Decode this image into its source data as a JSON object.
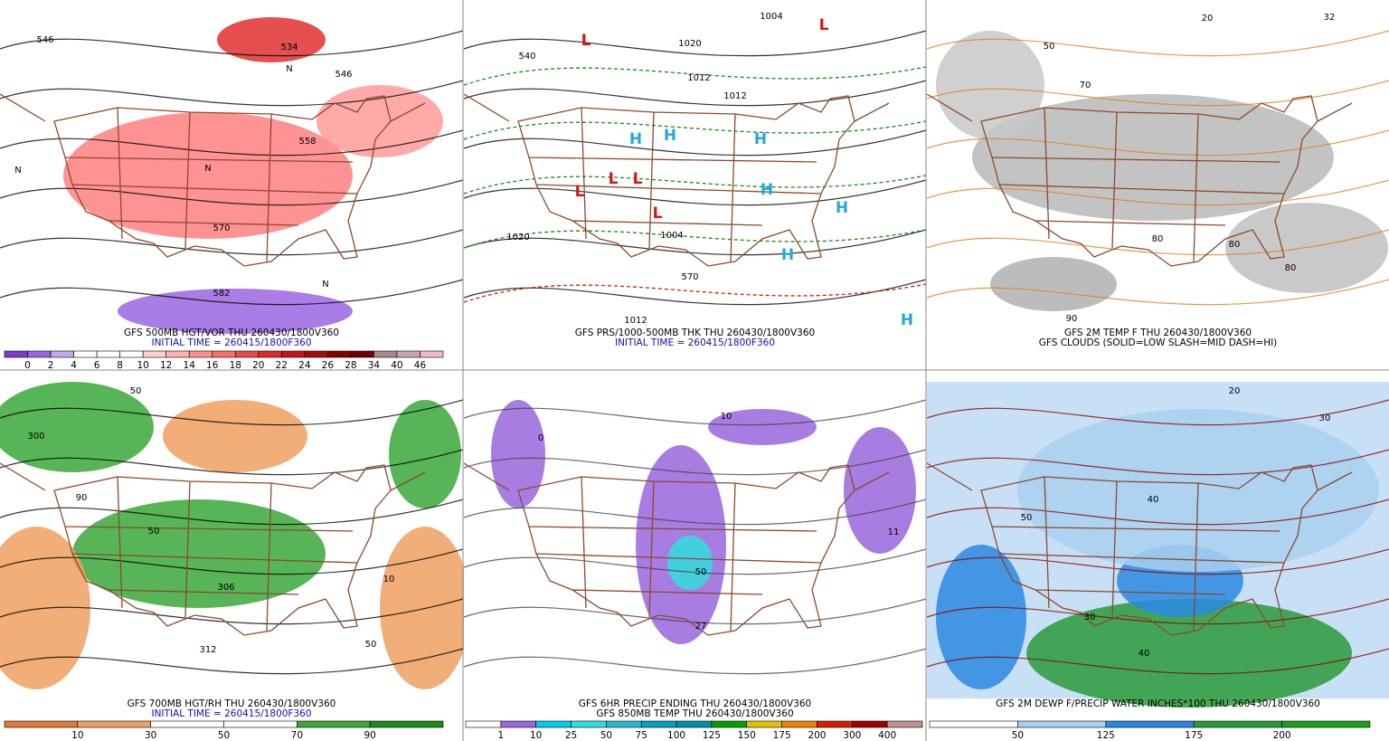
{
  "panels": [
    {
      "captions": [
        "GFS 500MB HGT/VOR THU 260430/1800V360",
        "INITIAL TIME = 260415/1800F360"
      ],
      "colorbar": {
        "labels": [
          0,
          2,
          4,
          6,
          8,
          10,
          12,
          14,
          16,
          18,
          20,
          22,
          24,
          26,
          28,
          34,
          40,
          46
        ],
        "colors": [
          "#7b3fd0",
          "#9a66e0",
          "#c6a8ee",
          "#ffffff",
          "#ffffff",
          "#ffffff",
          "#ffd0d0",
          "#ffb0b0",
          "#ff8c8c",
          "#ff6a6a",
          "#f04848",
          "#e02828",
          "#c81414",
          "#a80a0a",
          "#8a0000",
          "#700000",
          "#a88888",
          "#c8a8a8",
          "#f0b8c8"
        ]
      },
      "map_labels": [
        "546",
        "534",
        "546",
        "558",
        "570",
        "582",
        "N",
        "N",
        "N",
        "N"
      ]
    },
    {
      "captions": [
        "GFS PRS/1000-500MB THK THU 260430/1800V360",
        "INITIAL TIME = 260415/1800F360"
      ],
      "map_labels": [
        "1004",
        "1020",
        "1012",
        "1012",
        "1020",
        "1004",
        "1012",
        "540",
        "570",
        "H",
        "H",
        "H",
        "H",
        "H",
        "H",
        "H",
        "L",
        "L",
        "L",
        "L",
        "L",
        "L"
      ]
    },
    {
      "captions": [
        "GFS 2M TEMP F THU 260430/1800V360",
        "GFS CLOUDS (SOLID=LOW SLASH=MID DASH=HI)"
      ],
      "map_labels": [
        "20",
        "32",
        "50",
        "70",
        "80",
        "80",
        "90",
        "80"
      ]
    },
    {
      "captions": [
        "GFS 700MB HGT/RH THU 260430/1800V360",
        "INITIAL TIME = 260415/1800F360"
      ],
      "colorbar": {
        "labels": [
          10,
          30,
          50,
          70,
          90
        ],
        "colors": [
          "#e07838",
          "#f0a060",
          "#ffffff",
          "#ffffff",
          "#3aa83a",
          "#1a8a1a"
        ]
      },
      "map_labels": [
        "50",
        "50",
        "90",
        "300",
        "306",
        "312",
        "10",
        "50"
      ]
    },
    {
      "captions": [
        "GFS 6HR PRECIP ENDING THU 260430/1800V360",
        "GFS 850MB TEMP THU 260430/1800V360"
      ],
      "colorbar": {
        "labels": [
          1,
          10,
          25,
          50,
          75,
          100,
          125,
          150,
          175,
          200,
          300,
          400
        ],
        "colors": [
          "#ffffff",
          "#9966dd",
          "#00ccee",
          "#33dddd",
          "#22bbcc",
          "#00a0c0",
          "#0090b0",
          "#00a000",
          "#e0c000",
          "#f08000",
          "#d02000",
          "#a00000",
          "#c09090"
        ]
      },
      "map_labels": [
        "0",
        "10",
        "50",
        "27",
        "11"
      ]
    },
    {
      "captions": [
        "GFS 2M DEWP F/PRECIP WATER INCHES*100 THU 260430/1800V360"
      ],
      "colorbar": {
        "labels": [
          50,
          125,
          175,
          200
        ],
        "colors": [
          "#ffffff",
          "#a8d0f0",
          "#2a88e0",
          "#2a9a3a",
          "#1aa01a"
        ]
      },
      "map_labels": [
        "20",
        "30",
        "40",
        "50",
        "30",
        "40"
      ]
    }
  ]
}
